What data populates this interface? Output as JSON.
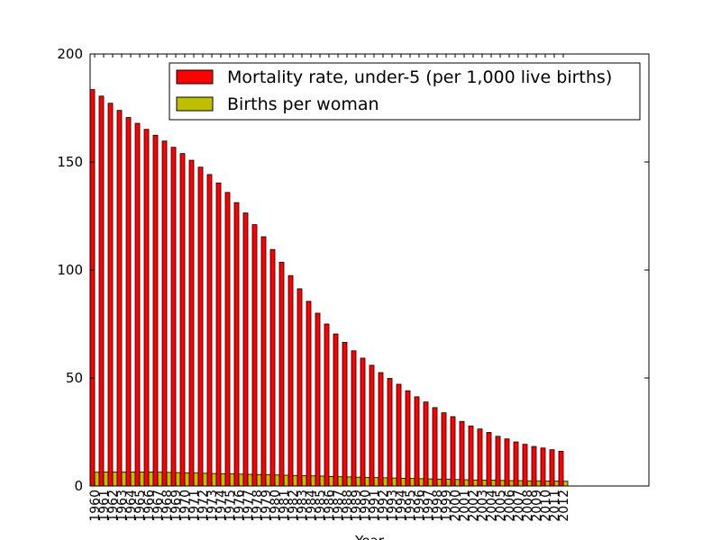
{
  "chart_data": {
    "type": "bar",
    "title": "",
    "xlabel": "Year",
    "ylabel": "",
    "ylim": [
      0,
      200
    ],
    "yticks": [
      0,
      50,
      100,
      150,
      200
    ],
    "grid": false,
    "legend_position": "top-right",
    "categories": [
      "1960",
      "1961",
      "1962",
      "1963",
      "1964",
      "1965",
      "1966",
      "1967",
      "1968",
      "1969",
      "1970",
      "1971",
      "1972",
      "1973",
      "1974",
      "1975",
      "1976",
      "1977",
      "1978",
      "1979",
      "1980",
      "1981",
      "1982",
      "1983",
      "1984",
      "1985",
      "1986",
      "1987",
      "1988",
      "1989",
      "1990",
      "1991",
      "1992",
      "1993",
      "1994",
      "1995",
      "1996",
      "1997",
      "1998",
      "1999",
      "2000",
      "2001",
      "2002",
      "2003",
      "2004",
      "2005",
      "2006",
      "2007",
      "2008",
      "2009",
      "2010",
      "2011",
      "2012"
    ],
    "series": [
      {
        "name": "Mortality rate, under-5 (per 1,000 live births)",
        "color": "#ff0000",
        "values": [
          183.5,
          180.5,
          177.2,
          173.9,
          170.6,
          167.9,
          165.1,
          162.4,
          159.7,
          156.8,
          153.9,
          150.8,
          147.6,
          144.2,
          140.3,
          135.9,
          131.2,
          126.4,
          121.0,
          115.4,
          109.5,
          103.6,
          97.4,
          91.3,
          85.5,
          80.0,
          75.0,
          70.4,
          66.5,
          62.6,
          59.2,
          55.9,
          52.5,
          49.8,
          47.1,
          44.1,
          41.3,
          38.9,
          36.3,
          33.9,
          32.1,
          29.9,
          27.8,
          26.4,
          24.8,
          23.0,
          21.8,
          20.4,
          19.3,
          18.3,
          17.6,
          16.8,
          16.1
        ]
      },
      {
        "name": "Births per woman",
        "color": "#bfbf00",
        "values": [
          6.4,
          6.5,
          6.5,
          6.5,
          6.5,
          6.5,
          6.5,
          6.4,
          6.3,
          6.2,
          6.1,
          6.0,
          5.9,
          5.8,
          5.7,
          5.6,
          5.5,
          5.4,
          5.3,
          5.2,
          5.1,
          5.0,
          4.9,
          4.8,
          4.7,
          4.6,
          4.4,
          4.3,
          4.2,
          4.1,
          4.0,
          3.9,
          3.8,
          3.7,
          3.6,
          3.5,
          3.4,
          3.3,
          3.2,
          3.1,
          3.0,
          2.9,
          2.8,
          2.7,
          2.7,
          2.6,
          2.5,
          2.5,
          2.4,
          2.4,
          2.3,
          2.3,
          2.2
        ]
      }
    ]
  }
}
